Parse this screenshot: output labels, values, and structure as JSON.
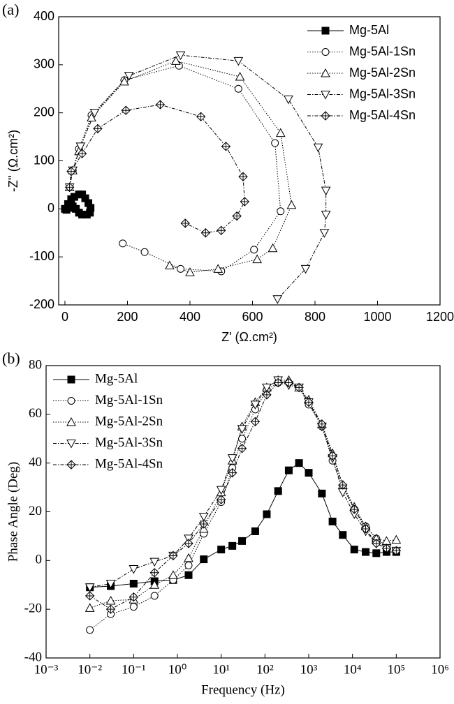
{
  "chart_data": [
    {
      "type": "line",
      "label": "(a)",
      "x_label": "Z' (Ω.cm²)",
      "y_label": "-Z'' (Ω.cm²)",
      "xlim": [
        -20,
        1200
      ],
      "ylim": [
        -200,
        400
      ],
      "xticks": [
        0,
        200,
        400,
        600,
        800,
        1000,
        1200
      ],
      "yticks": [
        -200,
        -100,
        0,
        100,
        200,
        300,
        400
      ],
      "legend": "upper right",
      "font": "sans",
      "series": [
        {
          "name": "Mg-5Al",
          "color": "#000000",
          "marker": "square",
          "dash": "solid",
          "x": [
            0,
            10,
            20,
            30,
            45,
            55,
            65,
            75,
            82,
            80,
            70,
            55,
            45,
            35,
            25,
            15,
            5
          ],
          "values": [
            0,
            10,
            20,
            25,
            30,
            30,
            22,
            12,
            2,
            -8,
            -12,
            -12,
            -8,
            0,
            5,
            2,
            -2
          ]
        },
        {
          "name": "Mg-5Al-1Sn",
          "color": "#000000",
          "marker": "circle",
          "dash": "dot",
          "x": [
            15,
            25,
            45,
            85,
            190,
            365,
            555,
            672,
            690,
            605,
            500,
            370,
            255,
            185
          ],
          "values": [
            45,
            80,
            125,
            195,
            268,
            298,
            250,
            137,
            -5,
            -85,
            -130,
            -125,
            -90,
            -72
          ]
        },
        {
          "name": "Mg-5Al-2Sn",
          "color": "#000000",
          "marker": "triangle-up",
          "dash": "dot",
          "x": [
            15,
            25,
            45,
            85,
            190,
            355,
            560,
            690,
            725,
            665,
            615,
            490,
            400,
            335
          ],
          "values": [
            45,
            80,
            120,
            190,
            265,
            308,
            275,
            158,
            8,
            -82,
            -105,
            -125,
            -132,
            -118
          ]
        },
        {
          "name": "Mg-5Al-3Sn",
          "color": "#000000",
          "marker": "triangle-down",
          "dash": "dashdot",
          "x": [
            15,
            25,
            50,
            95,
            205,
            370,
            555,
            715,
            810,
            835,
            835,
            830,
            770,
            680
          ],
          "values": [
            45,
            80,
            130,
            200,
            277,
            320,
            308,
            228,
            128,
            38,
            -12,
            -50,
            -125,
            -188
          ]
        },
        {
          "name": "Mg-5Al-4Sn",
          "color": "#000000",
          "marker": "diamond-cross",
          "dash": "dashdot",
          "x": [
            15,
            20,
            55,
            105,
            195,
            305,
            435,
            515,
            570,
            575,
            550,
            500,
            450,
            385
          ],
          "values": [
            45,
            78,
            115,
            167,
            205,
            217,
            192,
            130,
            67,
            15,
            -15,
            -45,
            -50,
            -30
          ]
        }
      ]
    },
    {
      "type": "line",
      "label": "(b)",
      "x_label": "Frequency (Hz)",
      "y_label": "Phase Angle (Deg)",
      "log_x": true,
      "xlim": [
        0.001,
        1000000
      ],
      "ylim": [
        -40,
        80
      ],
      "xticks": [
        {
          "value": 0.001,
          "label": "10⁻³"
        },
        {
          "value": 0.01,
          "label": "10⁻²"
        },
        {
          "value": 0.1,
          "label": "10⁻¹"
        },
        {
          "value": 1,
          "label": "10⁰"
        },
        {
          "value": 10,
          "label": "10¹"
        },
        {
          "value": 100,
          "label": "10²"
        },
        {
          "value": 1000,
          "label": "10³"
        },
        {
          "value": 10000,
          "label": "10⁴"
        },
        {
          "value": 100000,
          "label": "10⁵"
        },
        {
          "value": 1000000,
          "label": "10⁶"
        }
      ],
      "yticks": [
        -40,
        -20,
        0,
        20,
        40,
        60,
        80
      ],
      "legend": "upper left",
      "font": "serif",
      "x": [
        0.01,
        0.03,
        0.1,
        0.3,
        0.8,
        1.8,
        4,
        10,
        18,
        30,
        60,
        110,
        200,
        350,
        600,
        1000,
        2000,
        3500,
        6000,
        11000,
        20000,
        35000,
        60000,
        100000
      ],
      "series": [
        {
          "name": "Mg-5Al",
          "color": "#000000",
          "marker": "square",
          "dash": "solid",
          "values": [
            -11,
            -10.5,
            -9.5,
            -8.5,
            -8,
            -6,
            0.5,
            4.5,
            6,
            8,
            12,
            19,
            28.5,
            37,
            40,
            36,
            27.5,
            16,
            10.5,
            4.5,
            3.5,
            3,
            3.5,
            3.5
          ]
        },
        {
          "name": "Mg-5Al-1Sn",
          "color": "#000000",
          "marker": "circle",
          "dash": "dot",
          "values": [
            -28.5,
            -22,
            -19,
            -14.5,
            -8,
            -2,
            11,
            24,
            38,
            50,
            62,
            70,
            73,
            73,
            71,
            64,
            55,
            41,
            30,
            21,
            14,
            9,
            6,
            4
          ]
        },
        {
          "name": "Mg-5Al-2Sn",
          "color": "#000000",
          "marker": "triangle-up",
          "dash": "dot",
          "values": [
            -19.5,
            -16.5,
            -16,
            -10,
            -6,
            1,
            13,
            28,
            41,
            55,
            65,
            71,
            74,
            74,
            71,
            66,
            56,
            44,
            31,
            22,
            14,
            9,
            8,
            8.5
          ]
        },
        {
          "name": "Mg-5Al-3Sn",
          "color": "#000000",
          "marker": "triangle-down",
          "dash": "dashdot",
          "values": [
            -11,
            -9.5,
            -3.5,
            -0.5,
            2,
            9,
            18,
            29,
            42,
            54,
            64,
            71,
            74,
            72,
            71,
            65,
            55,
            42,
            28,
            19,
            12,
            7,
            5,
            4
          ]
        },
        {
          "name": "Mg-5Al-4Sn",
          "color": "#000000",
          "marker": "diamond-cross",
          "dash": "dashdot",
          "values": [
            -14.5,
            -20,
            -15,
            -5,
            2,
            7,
            15,
            25,
            36,
            46,
            57,
            68,
            73,
            73,
            71,
            65,
            56,
            43,
            31,
            21,
            13,
            7,
            5,
            4
          ]
        }
      ]
    }
  ]
}
